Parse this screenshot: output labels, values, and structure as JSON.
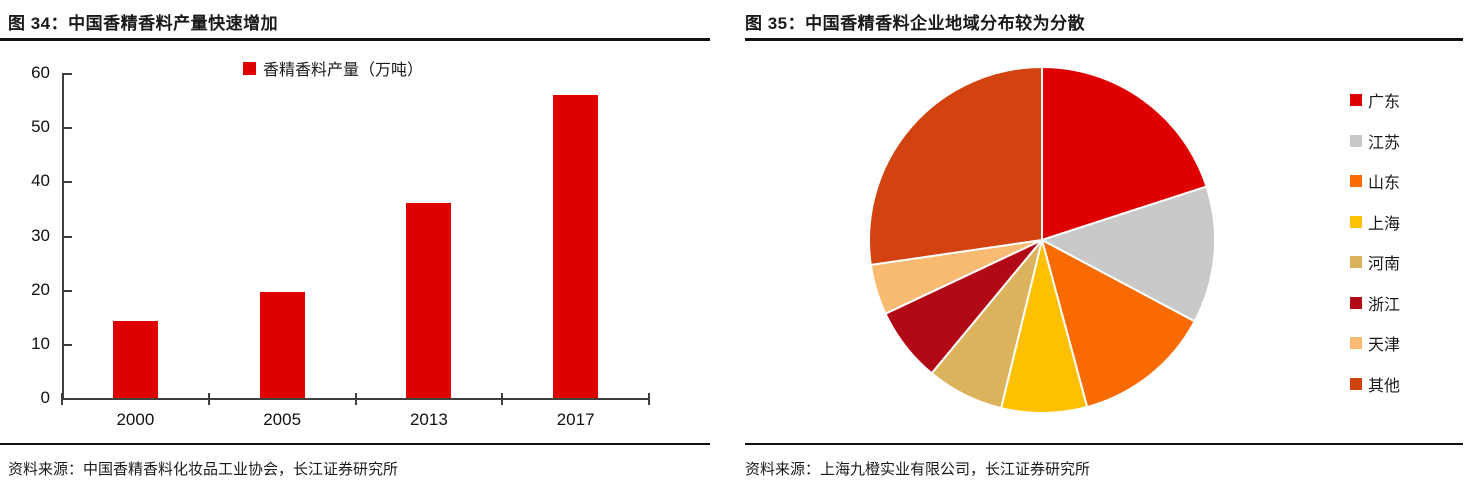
{
  "chart_data": [
    {
      "type": "bar",
      "figure_label": "图 34",
      "title": "图 34：中国香精香料产量快速增加",
      "legend_label": "香精香料产量（万吨）",
      "categories": [
        "2000",
        "2005",
        "2013",
        "2017"
      ],
      "values": [
        14.3,
        19.5,
        36,
        56
      ],
      "ylim": [
        0,
        60
      ],
      "yticks": [
        0,
        10,
        20,
        30,
        40,
        50,
        60
      ],
      "bar_color": "#df0000",
      "grid": false,
      "legend_position": "top-center",
      "source": "资料来源：中国香精香料化妆品工业协会，长江证券研究所"
    },
    {
      "type": "pie",
      "figure_label": "图 35",
      "title": "图 35：中国香精香料企业地域分布较为分散",
      "labels": [
        "广东",
        "江苏",
        "山东",
        "上海",
        "河南",
        "浙江",
        "天津",
        "其他"
      ],
      "values_percent": [
        20,
        12.8,
        13,
        8,
        7.2,
        7,
        4.7,
        27.3
      ],
      "colors": [
        "#df0000",
        "#c9c9c9",
        "#f96a00",
        "#ffc000",
        "#dcb25c",
        "#b20917",
        "#f9ba72",
        "#d2430f"
      ],
      "start_angle": "12-oclock",
      "direction": "clockwise",
      "slice_border_color": "#ffffff",
      "legend_position": "right",
      "source": "资料来源：上海九橙实业有限公司，长江证券研究所"
    }
  ]
}
